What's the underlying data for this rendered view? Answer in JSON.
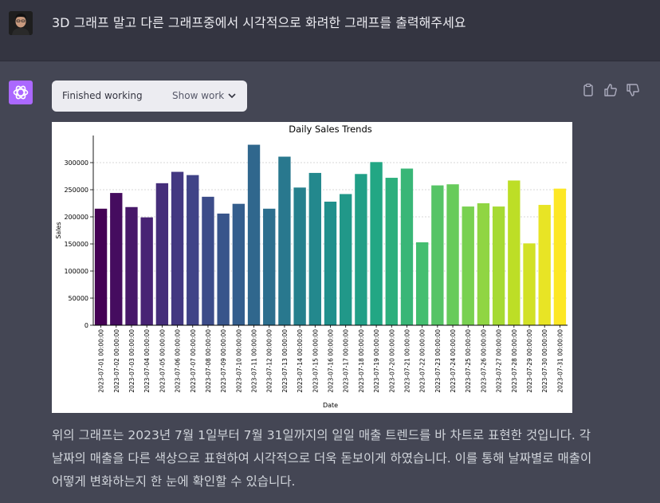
{
  "user_message": {
    "text": "3D 그래프 말고 다른 그래프중에서 시각적으로 화려한 그래프를 출력해주세요"
  },
  "status_box": {
    "label": "Finished working",
    "show_work_label": "Show work"
  },
  "response": {
    "paragraph": "위의 그래프는 2023년 7월 1일부터 7월 31일까지의 일일 매출 트렌드를 바 차트로 표현한 것입니다. 각 날짜의 매출을 다른 색상으로 표현하여 시각적으로 더욱 돋보이게 하였습니다. 이를 통해 날짜별로 매출이 어떻게 변화하는지 한 눈에 확인할 수 있습니다."
  },
  "icons": {
    "bot": "openai-logo-icon",
    "chevron": "chevron-down-icon",
    "actions": [
      "clipboard-icon",
      "thumbs-up-icon",
      "thumbs-down-icon"
    ]
  },
  "colors": {
    "user_bg": "#343541",
    "bot_bg": "#444654",
    "bot_icon": "#ab68ff",
    "palette": "viridis"
  },
  "chart_data": {
    "type": "bar",
    "title": "Daily Sales Trends",
    "xlabel": "Date",
    "ylabel": "Sales",
    "ylim": [
      0,
      350000
    ],
    "yticks": [
      0,
      50000,
      100000,
      150000,
      200000,
      250000,
      300000
    ],
    "grid": "horizontal dashed",
    "categories": [
      "2023-07-01 00:00:00",
      "2023-07-02 00:00:00",
      "2023-07-03 00:00:00",
      "2023-07-04 00:00:00",
      "2023-07-05 00:00:00",
      "2023-07-06 00:00:00",
      "2023-07-07 00:00:00",
      "2023-07-08 00:00:00",
      "2023-07-09 00:00:00",
      "2023-07-10 00:00:00",
      "2023-07-11 00:00:00",
      "2023-07-12 00:00:00",
      "2023-07-13 00:00:00",
      "2023-07-14 00:00:00",
      "2023-07-15 00:00:00",
      "2023-07-16 00:00:00",
      "2023-07-17 00:00:00",
      "2023-07-18 00:00:00",
      "2023-07-19 00:00:00",
      "2023-07-20 00:00:00",
      "2023-07-21 00:00:00",
      "2023-07-22 00:00:00",
      "2023-07-23 00:00:00",
      "2023-07-24 00:00:00",
      "2023-07-25 00:00:00",
      "2023-07-26 00:00:00",
      "2023-07-27 00:00:00",
      "2023-07-28 00:00:00",
      "2023-07-29 00:00:00",
      "2023-07-30 00:00:00",
      "2023-07-31 00:00:00"
    ],
    "values": [
      215000,
      244000,
      218000,
      199000,
      262000,
      283000,
      277000,
      237000,
      206000,
      224000,
      333000,
      215000,
      311000,
      254000,
      281000,
      228000,
      242000,
      279000,
      301000,
      272000,
      289000,
      153000,
      258000,
      260000,
      219000,
      225000,
      219000,
      267000,
      151000,
      222000,
      252000
    ]
  }
}
